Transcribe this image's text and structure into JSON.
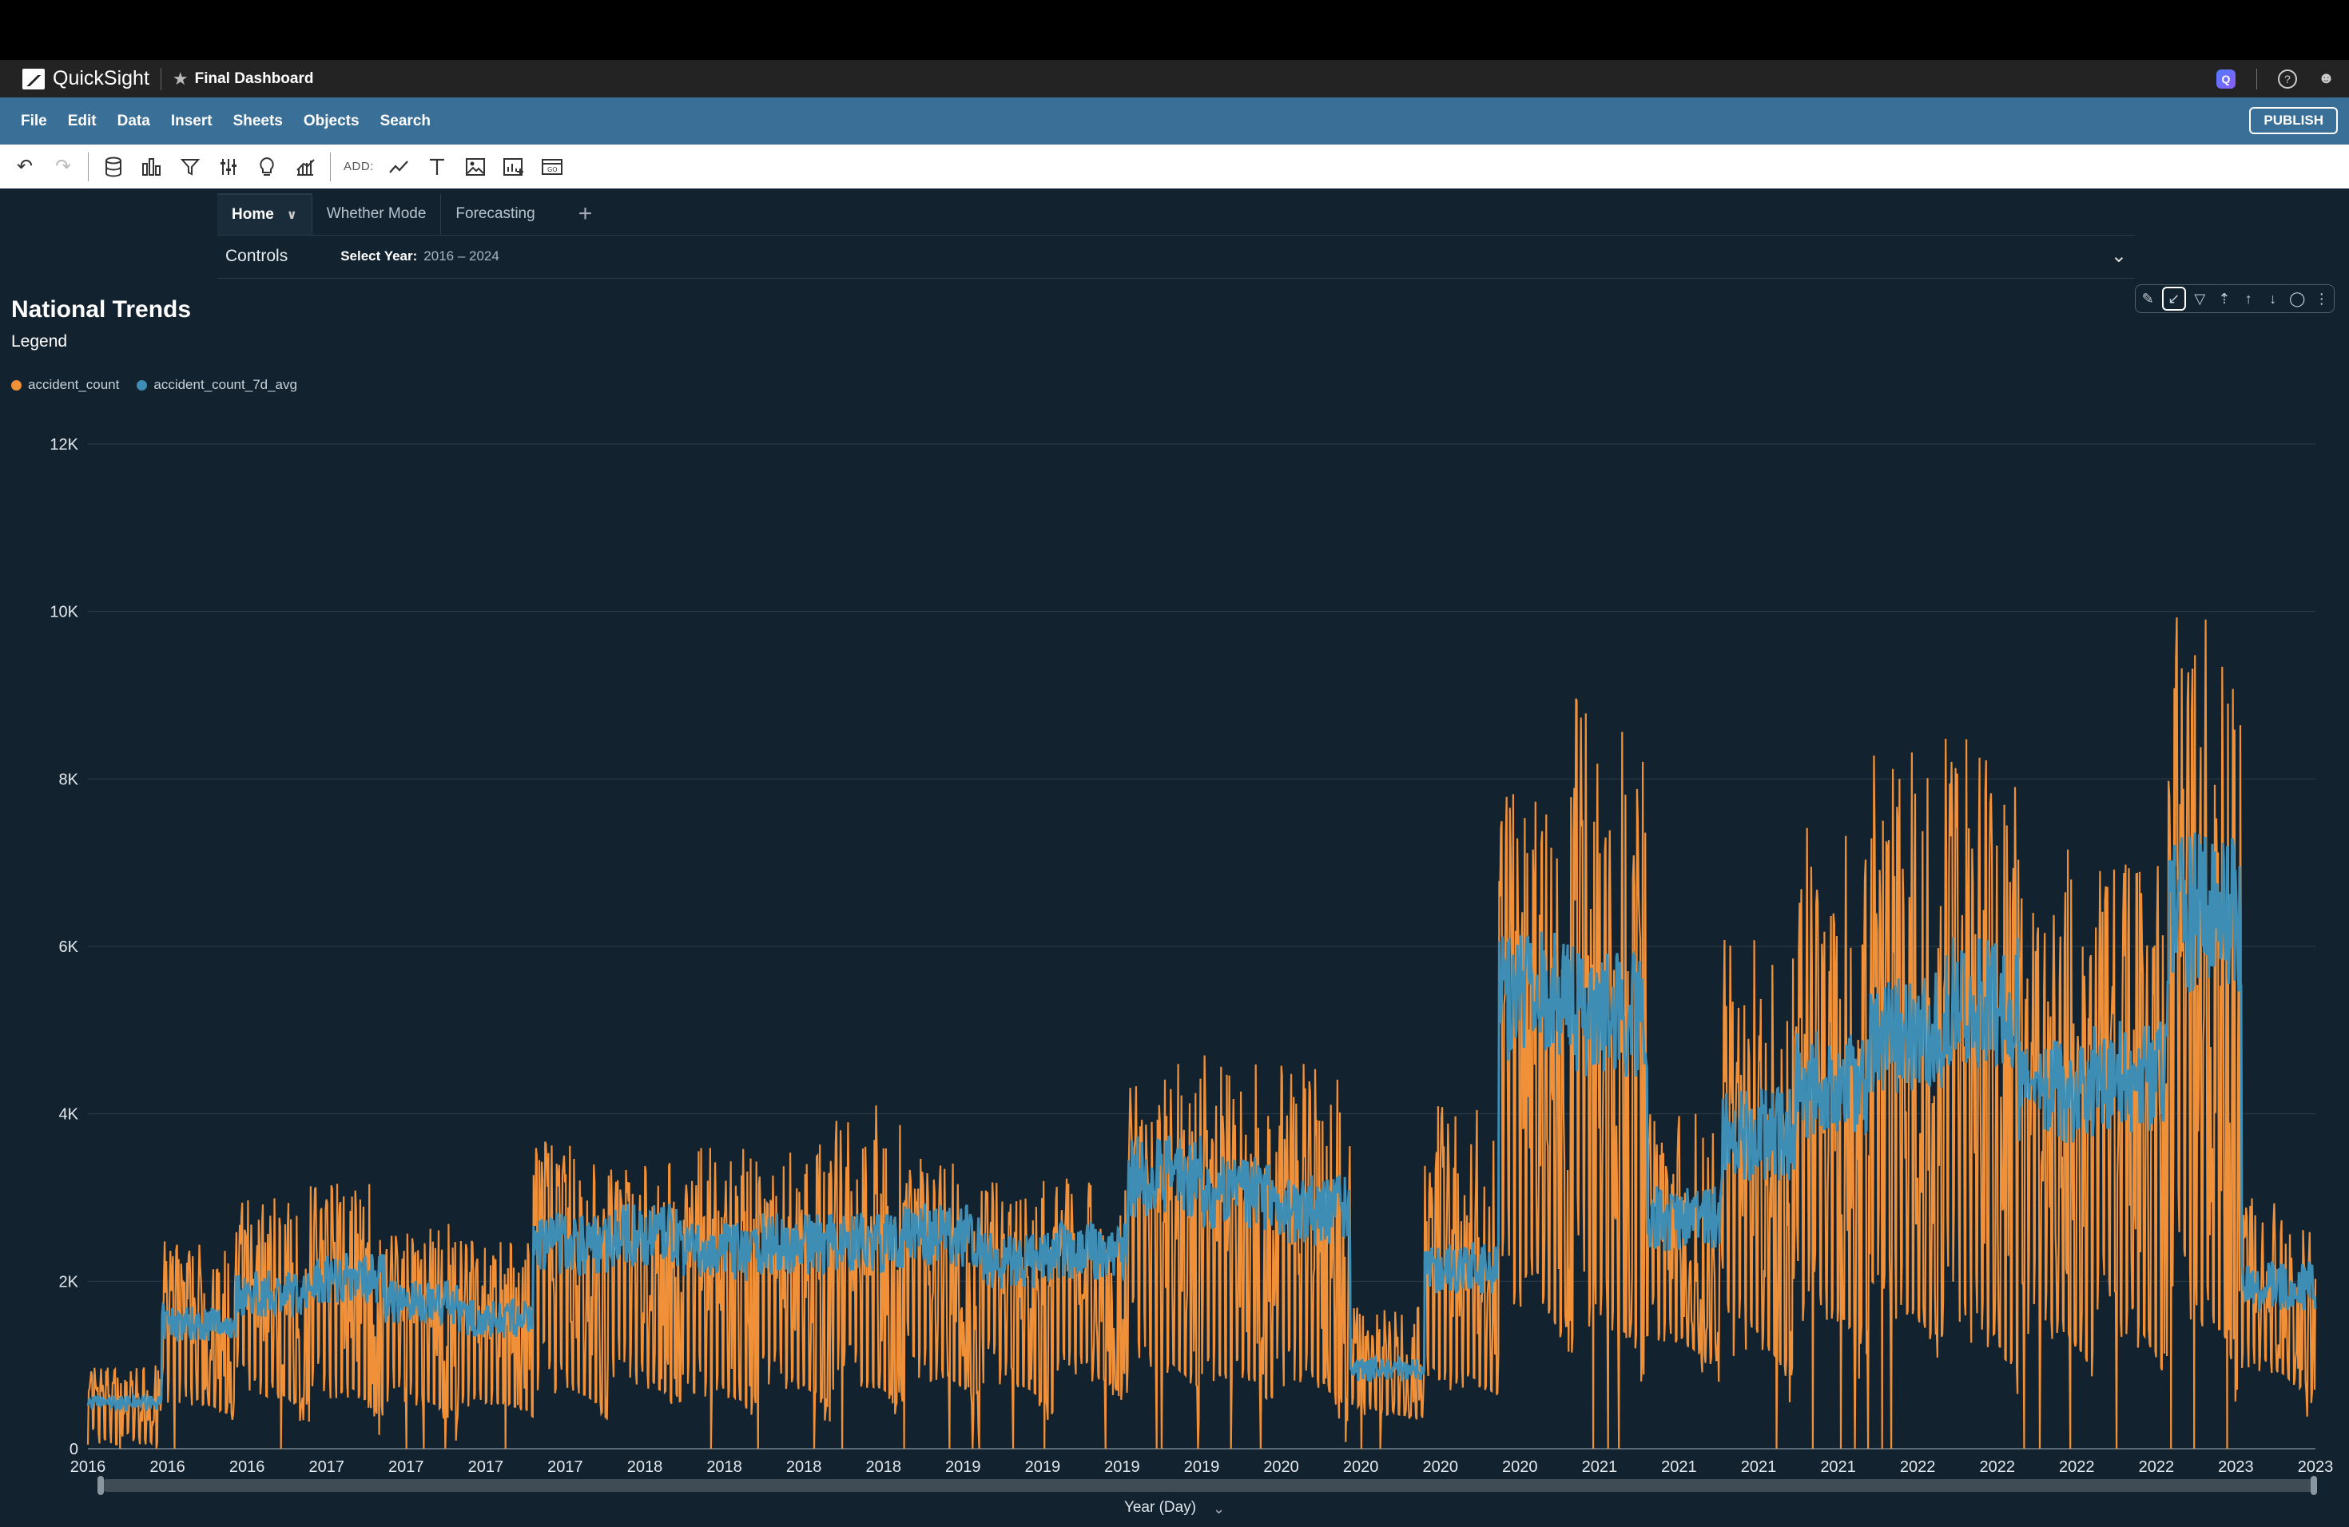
{
  "app": {
    "name": "QuickSight",
    "dashboard_title": "Final Dashboard",
    "publish_label": "PUBLISH"
  },
  "menu": [
    "File",
    "Edit",
    "Data",
    "Insert",
    "Sheets",
    "Objects",
    "Search"
  ],
  "toolbar": {
    "add_label": "ADD:"
  },
  "sheets": {
    "tabs": [
      "Home",
      "Whether Mode",
      "Forecasting"
    ],
    "active": "Home"
  },
  "controls": {
    "label": "Controls",
    "year_label": "Select Year:",
    "year_value": "2016 – 2024"
  },
  "visual": {
    "title": "National Trends",
    "legend_title": "Legend"
  },
  "colors": {
    "accident_count": "#f0913a",
    "accident_count_7d_avg": "#3d8db5",
    "background": "#12222f",
    "menubar": "#3a6f98"
  },
  "chart_data": {
    "type": "line",
    "title": "National Trends",
    "xlabel": "Year (Day)",
    "ylabel": "",
    "ylim": [
      0,
      12000
    ],
    "yticks": [
      {
        "value": 0,
        "label": "0"
      },
      {
        "value": 2000,
        "label": "2K"
      },
      {
        "value": 4000,
        "label": "4K"
      },
      {
        "value": 6000,
        "label": "6K"
      },
      {
        "value": 8000,
        "label": "8K"
      },
      {
        "value": 10000,
        "label": "10K"
      },
      {
        "value": 12000,
        "label": "12K"
      }
    ],
    "xticks": [
      "2016",
      "2016",
      "2016",
      "2017",
      "2017",
      "2017",
      "2017",
      "2018",
      "2018",
      "2018",
      "2018",
      "2019",
      "2019",
      "2019",
      "2019",
      "2020",
      "2020",
      "2020",
      "2020",
      "2021",
      "2021",
      "2021",
      "2021",
      "2022",
      "2022",
      "2022",
      "2022",
      "2023",
      "2023"
    ],
    "legend_position": "top-left",
    "grid": true,
    "x": [
      "2016-Q1",
      "2016-Q2",
      "2016-Q3",
      "2016-Q4",
      "2017-Q1",
      "2017-Q2",
      "2017-Q3",
      "2017-Q4",
      "2018-Q1",
      "2018-Q2",
      "2018-Q3",
      "2018-Q4",
      "2019-Q1",
      "2019-Q2",
      "2019-Q3",
      "2019-Q4",
      "2020-Q1",
      "2020-Q2",
      "2020-Q3",
      "2020-Q4",
      "2021-Q1",
      "2021-Q2",
      "2021-Q3",
      "2021-Q4",
      "2022-Q1",
      "2022-Q2",
      "2022-Q3",
      "2022-Q4",
      "2023-Q1",
      "2023-Q2"
    ],
    "series": [
      {
        "name": "accident_count",
        "values": [
          600,
          1600,
          1900,
          2100,
          1800,
          1600,
          2500,
          2600,
          2400,
          2500,
          2500,
          2600,
          2300,
          2400,
          3300,
          3100,
          2900,
          1000,
          2200,
          5500,
          5300,
          2800,
          3800,
          4400,
          5000,
          5400,
          4300,
          4500,
          6500,
          2000
        ],
        "high": [
          1000,
          2500,
          3000,
          3200,
          2700,
          2500,
          3700,
          3500,
          3600,
          3700,
          4200,
          3500,
          3200,
          3300,
          4600,
          4700,
          4600,
          1700,
          4100,
          8000,
          9000,
          4000,
          6200,
          7500,
          8500,
          8500,
          7200,
          7000,
          10000,
          3000
        ],
        "low": [
          50,
          500,
          600,
          600,
          500,
          500,
          600,
          700,
          600,
          700,
          700,
          800,
          700,
          800,
          900,
          800,
          700,
          400,
          700,
          1600,
          1400,
          1200,
          1100,
          1500,
          1500,
          1200,
          1300,
          1200,
          1400,
          900
        ]
      },
      {
        "name": "accident_count_7d_avg",
        "values": [
          550,
          1500,
          1850,
          2050,
          1750,
          1550,
          2450,
          2550,
          2350,
          2450,
          2450,
          2550,
          2250,
          2350,
          3250,
          3050,
          2850,
          950,
          2150,
          5400,
          5200,
          2750,
          3750,
          4350,
          4950,
          5350,
          4250,
          4450,
          6400,
          1950
        ]
      }
    ]
  }
}
